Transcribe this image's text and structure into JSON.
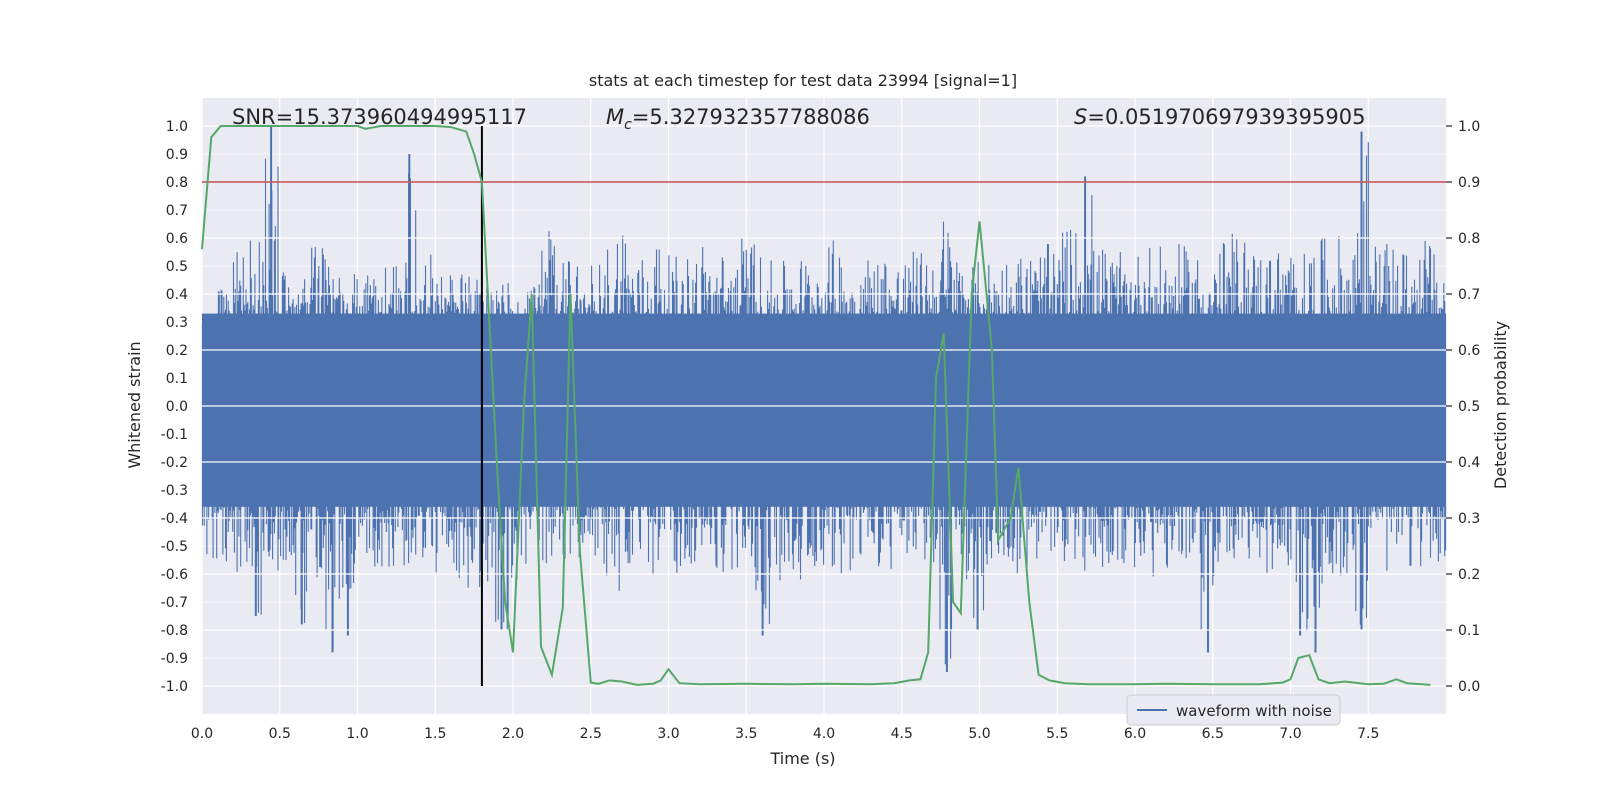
{
  "chart_data": {
    "type": "line",
    "title": "stats at each timestep for test data 23994 [signal=1]",
    "xlabel": "Time (s)",
    "ylabel_left": "Whitened strain",
    "ylabel_right": "Detection probability",
    "xlim": [
      0.0,
      8.0
    ],
    "ylim_left": [
      -1.1,
      1.1
    ],
    "ylim_right": [
      -0.05,
      1.05
    ],
    "x_ticks": [
      "0.0",
      "0.5",
      "1.0",
      "1.5",
      "2.0",
      "2.5",
      "3.0",
      "3.5",
      "4.0",
      "4.5",
      "5.0",
      "5.5",
      "6.0",
      "6.5",
      "7.0",
      "7.5"
    ],
    "x_tick_values": [
      0,
      0.5,
      1,
      1.5,
      2,
      2.5,
      3,
      3.5,
      4,
      4.5,
      5,
      5.5,
      6,
      6.5,
      7,
      7.5
    ],
    "y_left_ticks": [
      "1.0",
      "0.9",
      "0.8",
      "0.7",
      "0.6",
      "0.5",
      "0.4",
      "0.3",
      "0.2",
      "0.1",
      "0.0",
      "-0.1",
      "-0.2",
      "-0.3",
      "-0.4",
      "-0.5",
      "-0.6",
      "-0.7",
      "-0.8",
      "-0.9",
      "-1.0"
    ],
    "y_left_tick_values": [
      1.0,
      0.9,
      0.8,
      0.7,
      0.6,
      0.5,
      0.4,
      0.3,
      0.2,
      0.1,
      0.0,
      -0.1,
      -0.2,
      -0.3,
      -0.4,
      -0.5,
      -0.6,
      -0.7,
      -0.8,
      -0.9,
      -1.0
    ],
    "y_right_ticks": [
      "1.0",
      "0.9",
      "0.8",
      "0.7",
      "0.6",
      "0.5",
      "0.4",
      "0.3",
      "0.2",
      "0.1",
      "0.0"
    ],
    "y_right_tick_values": [
      1.0,
      0.9,
      0.8,
      0.7,
      0.6,
      0.5,
      0.4,
      0.3,
      0.2,
      0.1,
      0.0
    ],
    "annotations": {
      "snr": "SNR=15.373960494995117",
      "mc": "=5.327932357788086",
      "mc_symbol": "M",
      "mc_sub": "c",
      "s": "=0.051970697939395905",
      "s_symbol": "S"
    },
    "threshold": {
      "value": 0.9,
      "axis": "right",
      "color": "#c44e52"
    },
    "marker_line": {
      "x": 1.8,
      "color": "#000000"
    },
    "series": [
      {
        "name": "waveform with noise",
        "axis": "left",
        "color": "#4c72b0",
        "description_only": false,
        "envelope_upper": [
          0.28,
          0.42,
          0.58,
          0.62,
          1.0,
          0.55,
          0.46,
          0.62,
          0.5,
          0.48,
          0.47,
          0.52,
          0.5,
          0.9,
          0.55,
          0.5,
          0.48,
          0.47,
          0.45,
          0.45,
          0.4,
          0.45,
          0.68,
          0.52,
          0.5,
          0.55,
          0.6,
          0.7,
          0.55,
          0.62,
          0.54,
          0.55,
          0.6,
          0.56,
          0.58,
          0.62,
          0.55,
          0.52,
          0.55,
          0.56,
          0.58,
          0.6,
          0.52,
          0.55,
          0.57,
          0.54,
          0.56,
          0.58,
          0.7,
          0.55,
          0.52,
          0.54,
          0.55,
          0.56,
          0.57,
          0.58,
          0.65,
          0.82,
          0.58,
          0.55,
          0.56,
          0.6,
          0.57,
          0.58,
          0.56,
          0.55,
          0.6,
          0.62,
          0.58,
          0.56,
          0.58,
          0.55,
          0.6,
          0.62,
          0.58,
          0.98,
          0.6,
          0.58,
          0.56,
          0.62,
          0.55
        ],
        "envelope_lower": [
          -0.6,
          -0.58,
          -0.62,
          -0.75,
          -0.64,
          -0.58,
          -0.78,
          -0.62,
          -0.88,
          -0.82,
          -0.56,
          -0.6,
          -0.62,
          -0.58,
          -0.55,
          -0.6,
          -0.7,
          -0.65,
          -0.68,
          -0.8,
          -0.66,
          -0.6,
          -0.62,
          -0.6,
          -0.58,
          -0.56,
          -0.62,
          -0.7,
          -0.68,
          -0.62,
          -0.6,
          -0.58,
          -0.56,
          -0.62,
          -0.6,
          -0.58,
          -0.82,
          -0.66,
          -0.62,
          -0.6,
          -0.58,
          -0.6,
          -0.62,
          -0.58,
          -0.6,
          -0.62,
          -0.56,
          -0.58,
          -0.95,
          -0.62,
          -0.8,
          -0.6,
          -0.58,
          -0.62,
          -0.6,
          -0.58,
          -0.56,
          -0.6,
          -0.62,
          -0.58,
          -0.6,
          -0.62,
          -0.6,
          -0.58,
          -0.6,
          -0.88,
          -0.62,
          -0.58,
          -0.6,
          -0.62,
          -0.58,
          -0.82,
          -0.88,
          -0.6,
          -0.62,
          -0.8,
          -0.62,
          -0.6,
          -0.58,
          -0.6,
          -0.56
        ]
      },
      {
        "name": "detection probability",
        "axis": "right",
        "color": "#55a868",
        "x": [
          0.0,
          0.06,
          0.12,
          0.2,
          0.4,
          0.6,
          0.8,
          1.0,
          1.05,
          1.15,
          1.3,
          1.5,
          1.6,
          1.7,
          1.75,
          1.8,
          1.9,
          1.95,
          2.0,
          2.07,
          2.12,
          2.18,
          2.25,
          2.32,
          2.37,
          2.43,
          2.5,
          2.55,
          2.62,
          2.7,
          2.8,
          2.9,
          2.95,
          3.0,
          3.07,
          3.2,
          3.5,
          3.8,
          4.0,
          4.3,
          4.45,
          4.55,
          4.62,
          4.67,
          4.72,
          4.77,
          4.83,
          4.88,
          4.95,
          5.0,
          5.08,
          5.12,
          5.2,
          5.25,
          5.32,
          5.38,
          5.45,
          5.55,
          5.7,
          6.0,
          6.2,
          6.5,
          6.8,
          6.95,
          7.0,
          7.05,
          7.12,
          7.18,
          7.25,
          7.35,
          7.5,
          7.6,
          7.68,
          7.75,
          7.9
        ],
        "values": [
          0.78,
          0.98,
          1.0,
          1.0,
          1.0,
          1.0,
          1.0,
          1.0,
          0.995,
          1.0,
          1.0,
          1.0,
          0.998,
          0.99,
          0.95,
          0.9,
          0.38,
          0.15,
          0.06,
          0.5,
          0.7,
          0.07,
          0.02,
          0.14,
          0.7,
          0.24,
          0.006,
          0.004,
          0.01,
          0.008,
          0.002,
          0.004,
          0.01,
          0.03,
          0.005,
          0.003,
          0.004,
          0.003,
          0.004,
          0.003,
          0.005,
          0.01,
          0.012,
          0.06,
          0.55,
          0.63,
          0.15,
          0.13,
          0.7,
          0.83,
          0.6,
          0.26,
          0.3,
          0.39,
          0.15,
          0.02,
          0.01,
          0.005,
          0.003,
          0.003,
          0.004,
          0.003,
          0.003,
          0.006,
          0.012,
          0.05,
          0.055,
          0.012,
          0.005,
          0.008,
          0.003,
          0.004,
          0.012,
          0.005,
          0.002
        ]
      }
    ],
    "legend": {
      "placement": "bottom-right",
      "label": "waveform with noise"
    }
  }
}
